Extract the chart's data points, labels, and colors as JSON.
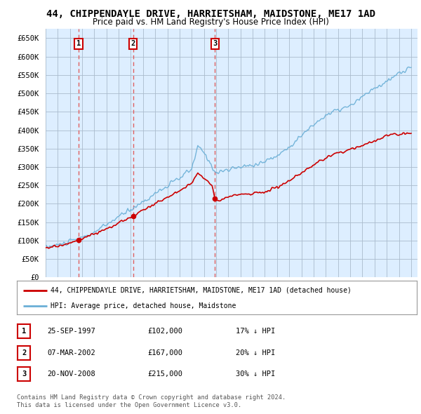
{
  "title": "44, CHIPPENDAYLE DRIVE, HARRIETSHAM, MAIDSTONE, ME17 1AD",
  "subtitle": "Price paid vs. HM Land Registry's House Price Index (HPI)",
  "ytick_values": [
    0,
    50000,
    100000,
    150000,
    200000,
    250000,
    300000,
    350000,
    400000,
    450000,
    500000,
    550000,
    600000,
    650000
  ],
  "ylim": [
    0,
    675000
  ],
  "xlim_start": 1995.0,
  "xlim_end": 2025.5,
  "sale_dates": [
    1997.73,
    2002.18,
    2008.9
  ],
  "sale_prices": [
    102000,
    167000,
    215000
  ],
  "sale_labels": [
    "1",
    "2",
    "3"
  ],
  "hpi_color": "#6aafd6",
  "price_color": "#cc0000",
  "dashed_color": "#e06060",
  "chart_bg_color": "#ddeeff",
  "legend_label_price": "44, CHIPPENDAYLE DRIVE, HARRIETSHAM, MAIDSTONE, ME17 1AD (detached house)",
  "legend_label_hpi": "HPI: Average price, detached house, Maidstone",
  "table_rows": [
    [
      "1",
      "25-SEP-1997",
      "£102,000",
      "17% ↓ HPI"
    ],
    [
      "2",
      "07-MAR-2002",
      "£167,000",
      "20% ↓ HPI"
    ],
    [
      "3",
      "20-NOV-2008",
      "£215,000",
      "30% ↓ HPI"
    ]
  ],
  "footnote1": "Contains HM Land Registry data © Crown copyright and database right 2024.",
  "footnote2": "This data is licensed under the Open Government Licence v3.0.",
  "bg_color": "#ffffff",
  "grid_color": "#aabbcc",
  "title_fontsize": 10,
  "subtitle_fontsize": 8.5
}
